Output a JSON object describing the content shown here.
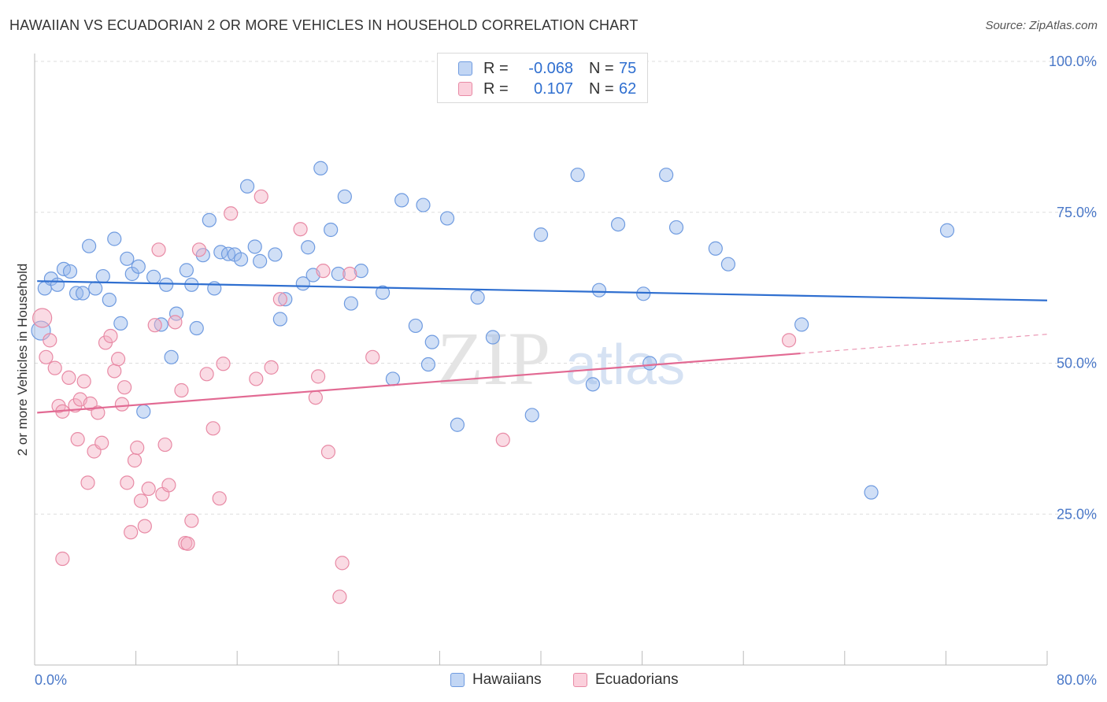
{
  "title": "HAWAIIAN VS ECUADORIAN 2 OR MORE VEHICLES IN HOUSEHOLD CORRELATION CHART",
  "source": "Source: ZipAtlas.com",
  "watermark": {
    "zip": "ZIP",
    "atlas": "atlas"
  },
  "legend": {
    "rows": [
      {
        "r_label": "R =",
        "r_value": "-0.068",
        "n_label": "N =",
        "n_value": "75",
        "color": "#a8c4f0",
        "border": "#6f9be0"
      },
      {
        "r_label": "R =",
        "r_value": "0.107",
        "n_label": "N =",
        "n_value": "62",
        "color": "#f7bccb",
        "border": "#e88aa5"
      }
    ]
  },
  "bottom_legend": {
    "hawaiians": "Hawaiians",
    "ecuadorians": "Ecuadorians"
  },
  "colors": {
    "hawaiian_fill": "rgba(150,185,235,0.45)",
    "hawaiian_stroke": "#6f9be0",
    "hawaiian_line": "#2f6fd0",
    "ecuadorian_fill": "rgba(245,175,195,0.45)",
    "ecuadorian_stroke": "#e88aa5",
    "ecuadorian_line": "#e26a93",
    "grid": "#dddddd",
    "axis_text": "#4a78c8"
  },
  "chart_data": {
    "type": "scatter",
    "title": "HAWAIIAN VS ECUADORIAN 2 OR MORE VEHICLES IN HOUSEHOLD CORRELATION CHART",
    "xlabel": "",
    "ylabel": "2 or more Vehicles in Household",
    "xlim": [
      0,
      80
    ],
    "ylim": [
      0,
      100
    ],
    "x_tick_labels": [
      "0.0%",
      "80.0%"
    ],
    "y_tick_labels": [
      "100.0%",
      "75.0%",
      "50.0%",
      "25.0%"
    ],
    "y_ticks": [
      100,
      75,
      50,
      25
    ],
    "grid": true,
    "legend_position": "top-center",
    "series": [
      {
        "name": "Hawaiians",
        "trend": {
          "x0": 0.2,
          "y0": 63.6,
          "x1": 80,
          "y1": 60.4,
          "dashed_from_x": null
        },
        "points": [
          [
            0.5,
            55.4
          ],
          [
            0.8,
            62.4
          ],
          [
            1.3,
            64
          ],
          [
            1.8,
            63
          ],
          [
            2.3,
            65.6
          ],
          [
            2.8,
            65.2
          ],
          [
            3.3,
            61.6
          ],
          [
            3.8,
            61.6
          ],
          [
            4.3,
            69.4
          ],
          [
            4.8,
            62.4
          ],
          [
            5.4,
            64.4
          ],
          [
            5.9,
            60.5
          ],
          [
            6.3,
            70.6
          ],
          [
            6.8,
            56.6
          ],
          [
            7.3,
            67.3
          ],
          [
            7.7,
            64.8
          ],
          [
            8.2,
            66
          ],
          [
            8.6,
            42
          ],
          [
            9.4,
            64.3
          ],
          [
            10,
            56.4
          ],
          [
            10.4,
            63
          ],
          [
            10.8,
            51
          ],
          [
            11.2,
            58.2
          ],
          [
            12,
            65.4
          ],
          [
            12.4,
            63
          ],
          [
            12.8,
            55.8
          ],
          [
            13.3,
            67.9
          ],
          [
            13.8,
            73.7
          ],
          [
            14.2,
            62.4
          ],
          [
            14.7,
            68.4
          ],
          [
            15.3,
            68.1
          ],
          [
            15.8,
            68
          ],
          [
            16.3,
            67.2
          ],
          [
            16.8,
            79.3
          ],
          [
            17.4,
            69.3
          ],
          [
            17.8,
            66.9
          ],
          [
            19,
            68
          ],
          [
            19.4,
            57.3
          ],
          [
            19.8,
            60.6
          ],
          [
            21.2,
            63.2
          ],
          [
            21.6,
            69.2
          ],
          [
            22,
            64.6
          ],
          [
            22.6,
            82.3
          ],
          [
            23.4,
            72.1
          ],
          [
            24,
            64.8
          ],
          [
            24.5,
            77.6
          ],
          [
            25,
            59.9
          ],
          [
            25.8,
            65.3
          ],
          [
            27.5,
            61.7
          ],
          [
            28.3,
            47.4
          ],
          [
            29,
            77
          ],
          [
            30.1,
            56.2
          ],
          [
            30.7,
            76.2
          ],
          [
            31.1,
            49.8
          ],
          [
            31.4,
            53.5
          ],
          [
            32.6,
            74
          ],
          [
            33.4,
            39.8
          ],
          [
            35,
            60.9
          ],
          [
            36.2,
            54.3
          ],
          [
            39.3,
            41.4
          ],
          [
            40,
            71.3
          ],
          [
            42.9,
            81.2
          ],
          [
            44.1,
            46.5
          ],
          [
            44.6,
            62.1
          ],
          [
            46.1,
            73
          ],
          [
            48.1,
            61.5
          ],
          [
            48.6,
            50
          ],
          [
            49.9,
            81.2
          ],
          [
            50.7,
            72.5
          ],
          [
            53.8,
            69
          ],
          [
            54.8,
            66.4
          ],
          [
            60.6,
            56.4
          ],
          [
            66.1,
            28.6
          ],
          [
            72.1,
            72
          ]
        ]
      },
      {
        "name": "Ecuadorians",
        "trend": {
          "x0": 0.2,
          "y0": 41.8,
          "x1": 80,
          "y1": 54.8,
          "dashed_from_x": 60.5
        },
        "points": [
          [
            0.6,
            57.5
          ],
          [
            0.9,
            51
          ],
          [
            1.2,
            53.8
          ],
          [
            1.6,
            49.2
          ],
          [
            1.9,
            42.9
          ],
          [
            2.2,
            42
          ],
          [
            2.7,
            47.6
          ],
          [
            3.2,
            43
          ],
          [
            3.4,
            37.4
          ],
          [
            3.6,
            44
          ],
          [
            3.9,
            47
          ],
          [
            4.2,
            30.2
          ],
          [
            4.4,
            43.3
          ],
          [
            4.7,
            35.4
          ],
          [
            5,
            41.8
          ],
          [
            5.3,
            36.8
          ],
          [
            5.6,
            53.4
          ],
          [
            6,
            54.5
          ],
          [
            6.3,
            48.7
          ],
          [
            6.6,
            50.7
          ],
          [
            6.9,
            43.2
          ],
          [
            7.1,
            46
          ],
          [
            7.3,
            30.2
          ],
          [
            7.6,
            22
          ],
          [
            7.9,
            33.9
          ],
          [
            8.1,
            36
          ],
          [
            8.4,
            27.2
          ],
          [
            8.7,
            23
          ],
          [
            9,
            29.2
          ],
          [
            9.5,
            56.3
          ],
          [
            9.8,
            68.8
          ],
          [
            10.1,
            28.3
          ],
          [
            10.3,
            36.5
          ],
          [
            10.6,
            29.8
          ],
          [
            11.1,
            56.8
          ],
          [
            11.6,
            45.5
          ],
          [
            11.9,
            20.2
          ],
          [
            12.4,
            23.9
          ],
          [
            13,
            68.8
          ],
          [
            13.6,
            48.2
          ],
          [
            14.1,
            39.2
          ],
          [
            14.6,
            27.6
          ],
          [
            14.9,
            49.9
          ],
          [
            15.5,
            74.8
          ],
          [
            17.5,
            47.4
          ],
          [
            17.9,
            77.6
          ],
          [
            18.7,
            49.3
          ],
          [
            19.4,
            60.6
          ],
          [
            21,
            72.2
          ],
          [
            22.2,
            44.3
          ],
          [
            22.4,
            47.8
          ],
          [
            22.8,
            65.3
          ],
          [
            23.2,
            35.3
          ],
          [
            24.3,
            16.9
          ],
          [
            24.9,
            64.8
          ],
          [
            26.7,
            51
          ],
          [
            37,
            37.3
          ],
          [
            59.6,
            53.8
          ],
          [
            2.2,
            17.6
          ],
          [
            12.1,
            20.1
          ],
          [
            24.1,
            11.3
          ]
        ]
      }
    ]
  }
}
